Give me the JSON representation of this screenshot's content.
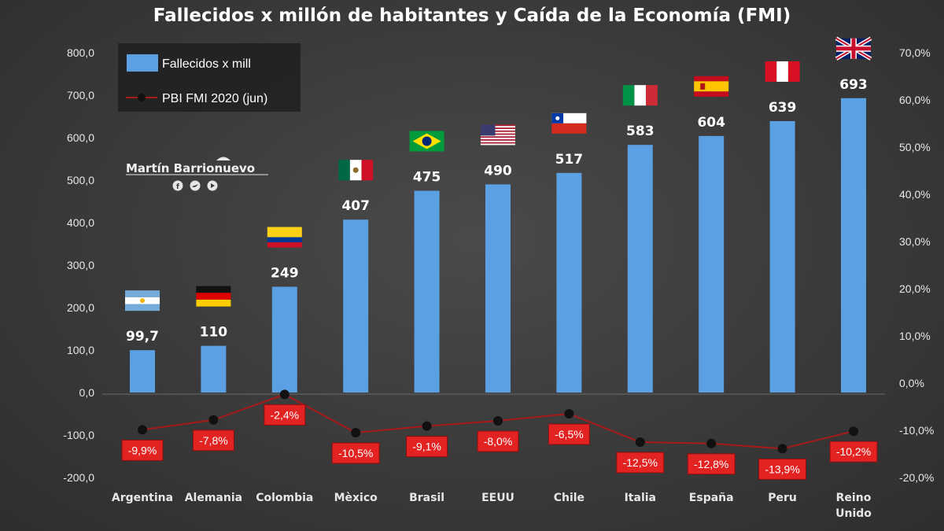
{
  "title": "Fallecidos x millón de habitantes y Caída de la Economía (FMI)",
  "author": "Martín Barrionuevo",
  "social_icons": [
    "facebook-icon",
    "twitter-icon",
    "youtube-icon"
  ],
  "colors": {
    "bar": "#5ba0e3",
    "line": "#a81919",
    "label_bg": "#e32222",
    "background": "#3a3a3a"
  },
  "chart_data": {
    "type": "bar",
    "categories": [
      "Argentina",
      "Alemania",
      "Colombia",
      "Mèxico",
      "Brasil",
      "EEUU",
      "Chile",
      "Italia",
      "España",
      "Peru",
      "Reino Unido"
    ],
    "flags": [
      "argentina-flag-icon",
      "germany-flag-icon",
      "colombia-flag-icon",
      "mexico-flag-icon",
      "brazil-flag-icon",
      "usa-flag-icon",
      "chile-flag-icon",
      "italy-flag-icon",
      "spain-flag-icon",
      "peru-flag-icon",
      "uk-flag-icon"
    ],
    "series": [
      {
        "name": "Fallecidos x mill",
        "type": "bar",
        "axis": "left",
        "values": [
          99.7,
          110,
          249,
          407,
          475,
          490,
          517,
          583,
          604,
          639,
          693
        ],
        "labels": [
          "99,7",
          "110",
          "249",
          "407",
          "475",
          "490",
          "517",
          "583",
          "604",
          "639",
          "693"
        ]
      },
      {
        "name": "PBI FMI 2020 (jun)",
        "type": "line",
        "axis": "right",
        "values": [
          -9.9,
          -7.8,
          -2.4,
          -10.5,
          -9.1,
          -8.0,
          -6.5,
          -12.5,
          -12.8,
          -13.9,
          -10.2
        ],
        "labels": [
          "-9,9%",
          "-7,8%",
          "-2,4%",
          "-10,5%",
          "-9,1%",
          "-8,0%",
          "-6,5%",
          "-12,5%",
          "-12,8%",
          "-13,9%",
          "-10,2%"
        ]
      }
    ],
    "left_axis": {
      "ylim": [
        -200,
        800
      ],
      "ticks": [
        "800,0",
        "700,0",
        "600,0",
        "500,0",
        "400,0",
        "300,0",
        "200,0",
        "100,0",
        "0,0",
        "-100,0",
        "-200,0"
      ]
    },
    "right_axis": {
      "ylim": [
        -20,
        70
      ],
      "ticks": [
        "70,0%",
        "60,0%",
        "50,0%",
        "40,0%",
        "30,0%",
        "20,0%",
        "10,0%",
        "0,0%",
        "-10,0%",
        "-20,0%"
      ]
    },
    "legend_position": "top-left",
    "grid": false
  }
}
